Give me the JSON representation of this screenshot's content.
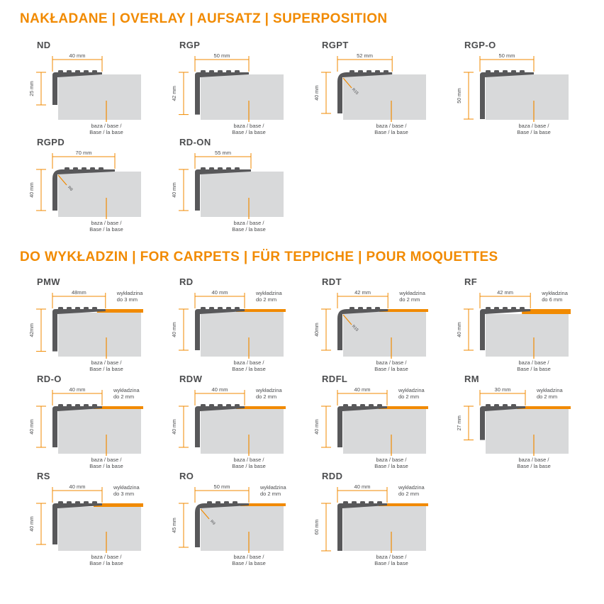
{
  "page_title": "Profile catalog - stair nosings",
  "colors": {
    "accent_orange": "#F18A00",
    "profile_dark": "#58585A",
    "base_gray": "#D8D9DA",
    "text_dark": "#4B4C4E"
  },
  "base_label_lines": [
    "baza / base /",
    "Base / la base"
  ],
  "sections": [
    {
      "id": "overlay",
      "title": "NAKŁADANE | OVERLAY | AUFSATZ | SUPERPOSITION",
      "profiles": [
        {
          "name": "ND",
          "width_label": "40 mm",
          "height_label": "25 mm",
          "width_mm": 40,
          "height_mm": 25,
          "variant": "sharp"
        },
        {
          "name": "RGP",
          "width_label": "50 mm",
          "height_label": "42 mm",
          "width_mm": 50,
          "height_mm": 42,
          "variant": "sharp"
        },
        {
          "name": "RGPT",
          "width_label": "52 mm",
          "height_label": "40 mm",
          "width_mm": 52,
          "height_mm": 40,
          "variant": "round",
          "radius_label": "R15"
        },
        {
          "name": "RGP-O",
          "width_label": "50 mm",
          "height_label": "50 mm",
          "width_mm": 50,
          "height_mm": 50,
          "variant": "sharp"
        },
        {
          "name": "RGPD",
          "width_label": "70 mm",
          "height_label": "40 mm",
          "width_mm": 70,
          "height_mm": 40,
          "variant": "round",
          "radius_label": "R8"
        },
        {
          "name": "RD-ON",
          "width_label": "55 mm",
          "height_label": "40 mm",
          "width_mm": 55,
          "height_mm": 40,
          "variant": "sharp"
        }
      ]
    },
    {
      "id": "carpets",
      "title": "DO WYKŁADZIN | FOR CARPETS | FÜR TEPPICHE | POUR MOQUETTES",
      "profiles": [
        {
          "name": "PMW",
          "width_label": "48mm",
          "height_label": "42mm",
          "width_mm": 48,
          "height_mm": 42,
          "variant": "sharp",
          "carpet_lines": [
            "wykładzina",
            "do 3 mm"
          ],
          "carpet_mm": 3
        },
        {
          "name": "RD",
          "width_label": "40 mm",
          "height_label": "40 mm",
          "width_mm": 40,
          "height_mm": 40,
          "variant": "sharp",
          "carpet_lines": [
            "wykładzina",
            "do 2 mm"
          ],
          "carpet_mm": 2
        },
        {
          "name": "RDT",
          "width_label": "42 mm",
          "height_label": "40mm",
          "width_mm": 42,
          "height_mm": 40,
          "variant": "round",
          "radius_label": "R15",
          "carpet_lines": [
            "wykładzina",
            "do 2 mm"
          ],
          "carpet_mm": 2
        },
        {
          "name": "RF",
          "width_label": "42 mm",
          "height_label": "40 mm",
          "width_mm": 42,
          "height_mm": 40,
          "variant": "sharp",
          "carpet_lines": [
            "wykładzina",
            "do 6 mm"
          ],
          "carpet_mm": 6
        },
        {
          "name": "RD-O",
          "width_label": "40 mm",
          "height_label": "40 mm",
          "width_mm": 40,
          "height_mm": 40,
          "variant": "sharp",
          "carpet_lines": [
            "wykładzina",
            "do 2 mm"
          ],
          "carpet_mm": 2
        },
        {
          "name": "RDW",
          "width_label": "40 mm",
          "height_label": "40 mm",
          "width_mm": 40,
          "height_mm": 40,
          "variant": "sharp",
          "carpet_lines": [
            "wykładzina",
            "do 2 mm"
          ],
          "carpet_mm": 2
        },
        {
          "name": "RDFL",
          "width_label": "40 mm",
          "height_label": "40 mm",
          "width_mm": 40,
          "height_mm": 40,
          "variant": "sharp",
          "carpet_lines": [
            "wykładzina",
            "do 2 mm"
          ],
          "carpet_mm": 2
        },
        {
          "name": "RM",
          "width_label": "30 mm",
          "height_label": "27 mm",
          "width_mm": 30,
          "height_mm": 27,
          "variant": "sharp",
          "carpet_lines": [
            "wykładzina",
            "do 2 mm"
          ],
          "carpet_mm": 2
        },
        {
          "name": "RS",
          "width_label": "40 mm",
          "height_label": "40 mm",
          "width_mm": 40,
          "height_mm": 40,
          "variant": "sharp",
          "carpet_lines": [
            "wykładzina",
            "do 3 mm"
          ],
          "carpet_mm": 3
        },
        {
          "name": "RO",
          "width_label": "50 mm",
          "height_label": "45 mm",
          "width_mm": 50,
          "height_mm": 45,
          "variant": "round",
          "radius_label": "R9",
          "carpet_lines": [
            "wykładzina",
            "do 2 mm"
          ],
          "carpet_mm": 2
        },
        {
          "name": "RDD",
          "width_label": "40 mm",
          "height_label": "60 mm",
          "width_mm": 40,
          "height_mm": 60,
          "variant": "sharp",
          "carpet_lines": [
            "wykładzina",
            "do 2 mm"
          ],
          "carpet_mm": 2
        }
      ]
    }
  ]
}
